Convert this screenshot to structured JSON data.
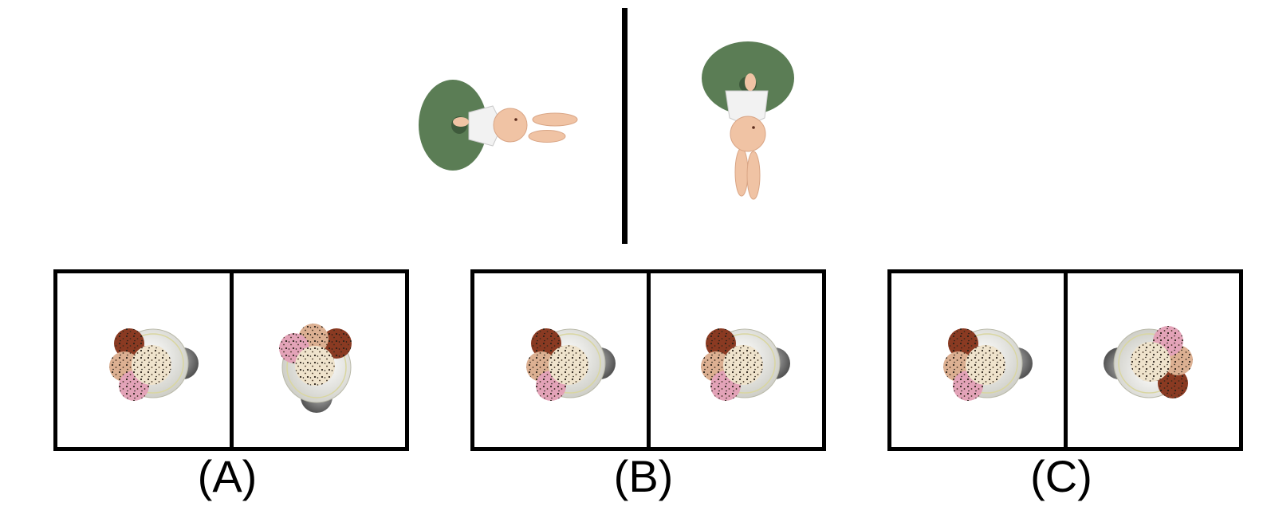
{
  "options": [
    {
      "label": "(A)"
    },
    {
      "label": "(B)"
    },
    {
      "label": "(C)"
    }
  ],
  "reference": {
    "object": "bunny-on-green-disc",
    "disc_color": "#5b7d55",
    "bunny_color": "#f0c3a4"
  },
  "candidate_object": "ice-cream-sundae-bowl",
  "colors": {
    "frame": "#000000",
    "background": "#ffffff",
    "bowl": "#e6e6e0",
    "stand": "#8a8a8a",
    "scoop_vanilla": "#efe3cc",
    "scoop_peach": "#dcb092",
    "scoop_chocolate": "#8a3a22",
    "scoop_strawberry": "#e3a3b8"
  }
}
